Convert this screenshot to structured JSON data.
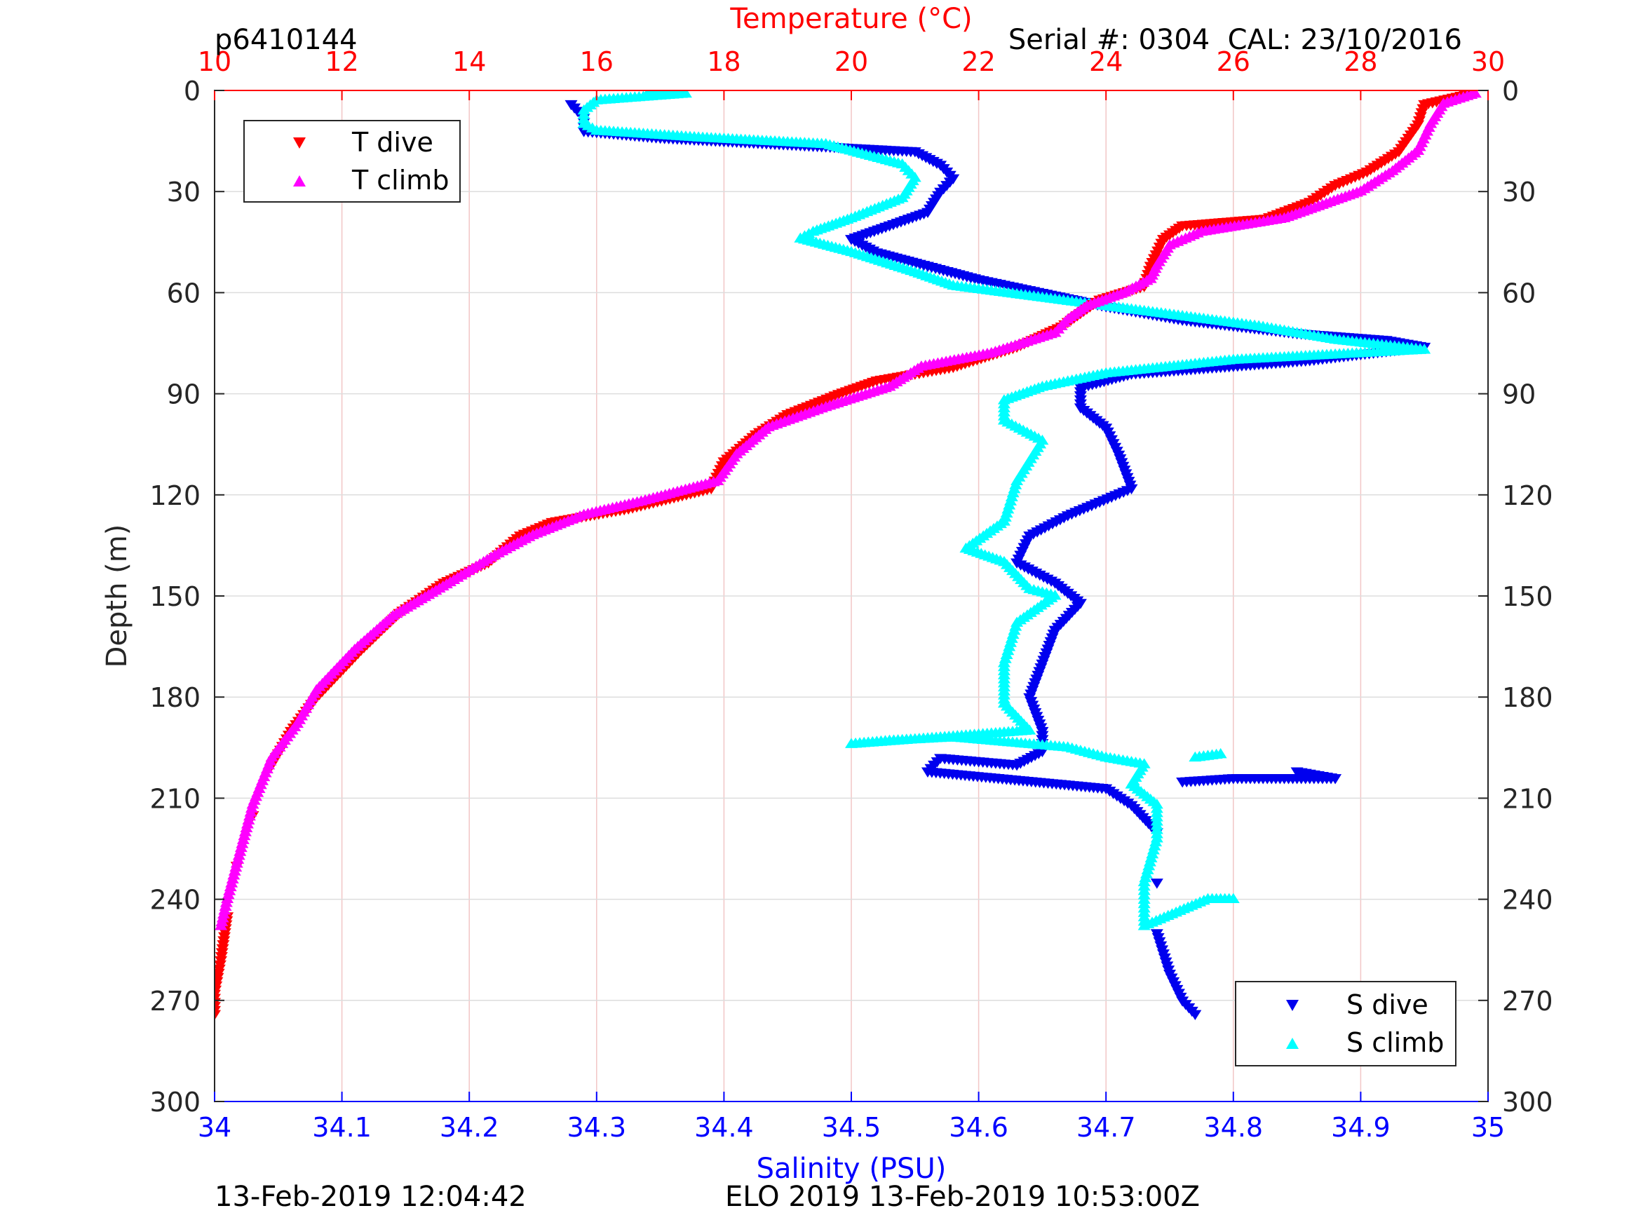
{
  "header": {
    "glider_id": "p6410144",
    "serial_cal": "Serial #: 0304  CAL: 23/10/2016"
  },
  "footer": {
    "plot_time": "13-Feb-2019 12:04:42",
    "mission": "ELO 2019 13-Feb-2019 10:53:00Z"
  },
  "colors": {
    "t_dive": "#ff0000",
    "t_climb": "#ff00ff",
    "s_dive": "#0000ee",
    "s_climb": "#00ffff",
    "temp_axis": "#ff0000",
    "sal_axis": "#0000ff",
    "grid_temp": "#f2c6c6",
    "grid_depth": "#dddddd"
  },
  "chart_data": {
    "type": "scatter",
    "axes": {
      "depth": {
        "label": "Depth (m)",
        "range": [
          0,
          300
        ],
        "inverted": true,
        "ticks": [
          0,
          30,
          60,
          90,
          120,
          150,
          180,
          210,
          240,
          270,
          300
        ],
        "tick_labels": [
          "0",
          "30",
          "60",
          "90",
          "120",
          "150",
          "180",
          "210",
          "240",
          "270",
          "300"
        ]
      },
      "temperature": {
        "label": "Temperature (°C)",
        "position": "top",
        "range": [
          10,
          30
        ],
        "ticks": [
          10,
          12,
          14,
          16,
          18,
          20,
          22,
          24,
          26,
          28,
          30
        ],
        "tick_labels": [
          "10",
          "12",
          "14",
          "16",
          "18",
          "20",
          "22",
          "24",
          "26",
          "28",
          "30"
        ]
      },
      "salinity": {
        "label": "Salinity (PSU)",
        "position": "bottom",
        "range": [
          34,
          35
        ],
        "ticks": [
          34,
          34.1,
          34.2,
          34.3,
          34.4,
          34.5,
          34.6,
          34.7,
          34.8,
          34.9,
          35
        ],
        "tick_labels": [
          "34",
          "34.1",
          "34.2",
          "34.3",
          "34.4",
          "34.5",
          "34.6",
          "34.7",
          "34.8",
          "34.9",
          "35"
        ]
      }
    },
    "grid": true,
    "legends": [
      {
        "placement": "top-left",
        "entries": [
          "T dive",
          "T climb"
        ]
      },
      {
        "placement": "bottom-right",
        "entries": [
          "S dive",
          "S climb"
        ]
      }
    ],
    "series": [
      {
        "name": "T dive",
        "axis": "temperature",
        "marker": "triangle-down",
        "points": [
          [
            29.7,
            1
          ],
          [
            29.0,
            4
          ],
          [
            28.9,
            10
          ],
          [
            28.6,
            18
          ],
          [
            28.1,
            24
          ],
          [
            27.6,
            28
          ],
          [
            27.2,
            33
          ],
          [
            26.5,
            38
          ],
          [
            25.2,
            40
          ],
          [
            24.9,
            44
          ],
          [
            24.7,
            52
          ],
          [
            24.6,
            58
          ],
          [
            23.9,
            62
          ],
          [
            23.6,
            66
          ],
          [
            23.3,
            70
          ],
          [
            22.6,
            76
          ],
          [
            21.6,
            82
          ],
          [
            20.4,
            86
          ],
          [
            19.8,
            90
          ],
          [
            19.0,
            96
          ],
          [
            18.5,
            102
          ],
          [
            18.0,
            110
          ],
          [
            17.8,
            118
          ],
          [
            16.5,
            124
          ],
          [
            15.3,
            128
          ],
          [
            14.8,
            132
          ],
          [
            14.3,
            140
          ],
          [
            13.6,
            146
          ],
          [
            12.9,
            155
          ],
          [
            12.3,
            166
          ],
          [
            11.6,
            180
          ],
          [
            11.2,
            190
          ],
          [
            10.9,
            200
          ],
          [
            10.6,
            215
          ],
          [
            10.35,
            230
          ],
          [
            10.2,
            245
          ],
          [
            10.1,
            258
          ],
          [
            10.0,
            268
          ],
          [
            10.0,
            274
          ]
        ]
      },
      {
        "name": "T climb",
        "axis": "temperature",
        "marker": "triangle-up",
        "points": [
          [
            29.8,
            1
          ],
          [
            29.3,
            4
          ],
          [
            29.1,
            10
          ],
          [
            28.9,
            18
          ],
          [
            28.5,
            24
          ],
          [
            28.0,
            30
          ],
          [
            27.4,
            34
          ],
          [
            26.8,
            38
          ],
          [
            25.5,
            42
          ],
          [
            25.0,
            46
          ],
          [
            24.8,
            52
          ],
          [
            24.7,
            56
          ],
          [
            24.3,
            60
          ],
          [
            23.7,
            64
          ],
          [
            23.4,
            68
          ],
          [
            23.2,
            72
          ],
          [
            22.2,
            78
          ],
          [
            21.1,
            82
          ],
          [
            20.6,
            88
          ],
          [
            19.6,
            94
          ],
          [
            18.7,
            100
          ],
          [
            18.2,
            108
          ],
          [
            17.9,
            116
          ],
          [
            16.7,
            122
          ],
          [
            15.8,
            126
          ],
          [
            15.0,
            132
          ],
          [
            14.4,
            138
          ],
          [
            13.7,
            146
          ],
          [
            12.8,
            156
          ],
          [
            12.2,
            166
          ],
          [
            11.6,
            178
          ],
          [
            11.3,
            188
          ],
          [
            10.9,
            198
          ],
          [
            10.6,
            212
          ],
          [
            10.4,
            226
          ],
          [
            10.2,
            240
          ],
          [
            10.1,
            248
          ]
        ]
      },
      {
        "name": "S dive",
        "axis": "salinity",
        "marker": "triangle-down",
        "points": [
          [
            34.28,
            4
          ],
          [
            34.29,
            8
          ],
          [
            34.29,
            12
          ],
          [
            34.35,
            14
          ],
          [
            34.45,
            16
          ],
          [
            34.55,
            18
          ],
          [
            34.57,
            22
          ],
          [
            34.58,
            26
          ],
          [
            34.57,
            30
          ],
          [
            34.56,
            36
          ],
          [
            34.53,
            40
          ],
          [
            34.5,
            44
          ],
          [
            34.52,
            48
          ],
          [
            34.56,
            52
          ],
          [
            34.6,
            56
          ],
          [
            34.65,
            60
          ],
          [
            34.7,
            64
          ],
          [
            34.76,
            68
          ],
          [
            34.85,
            72
          ],
          [
            34.92,
            74
          ],
          [
            34.95,
            76
          ],
          [
            34.86,
            80
          ],
          [
            34.72,
            84
          ],
          [
            34.68,
            88
          ],
          [
            34.68,
            94
          ],
          [
            34.7,
            100
          ],
          [
            34.71,
            108
          ],
          [
            34.72,
            118
          ],
          [
            34.67,
            126
          ],
          [
            34.64,
            132
          ],
          [
            34.63,
            140
          ],
          [
            34.66,
            146
          ],
          [
            34.68,
            152
          ],
          [
            34.66,
            160
          ],
          [
            34.65,
            170
          ],
          [
            34.64,
            180
          ],
          [
            34.65,
            190
          ],
          [
            34.65,
            196
          ],
          [
            34.63,
            200
          ],
          [
            34.57,
            198
          ],
          [
            34.56,
            202
          ],
          [
            34.7,
            207
          ],
          [
            34.72,
            212
          ],
          [
            34.74,
            220
          ],
          [
            34.74,
            235
          ],
          [
            34.74,
            250
          ],
          [
            34.75,
            262
          ],
          [
            34.76,
            270
          ],
          [
            34.77,
            274
          ],
          [
            34.85,
            202
          ],
          [
            34.88,
            204
          ],
          [
            34.8,
            204
          ],
          [
            34.76,
            205
          ]
        ]
      },
      {
        "name": "S climb",
        "axis": "salinity",
        "marker": "triangle-up",
        "points": [
          [
            34.34,
            1
          ],
          [
            34.37,
            1
          ],
          [
            34.3,
            3
          ],
          [
            34.29,
            6
          ],
          [
            34.29,
            10
          ],
          [
            34.3,
            12
          ],
          [
            34.38,
            14
          ],
          [
            34.48,
            16
          ],
          [
            34.54,
            22
          ],
          [
            34.55,
            26
          ],
          [
            34.54,
            32
          ],
          [
            34.5,
            38
          ],
          [
            34.47,
            42
          ],
          [
            34.46,
            44
          ],
          [
            34.5,
            48
          ],
          [
            34.55,
            54
          ],
          [
            34.58,
            58
          ],
          [
            34.66,
            62
          ],
          [
            34.74,
            66
          ],
          [
            34.82,
            70
          ],
          [
            34.88,
            74
          ],
          [
            34.95,
            77
          ],
          [
            34.8,
            80
          ],
          [
            34.7,
            84
          ],
          [
            34.65,
            88
          ],
          [
            34.62,
            92
          ],
          [
            34.62,
            98
          ],
          [
            34.65,
            104
          ],
          [
            34.63,
            116
          ],
          [
            34.62,
            128
          ],
          [
            34.59,
            136
          ],
          [
            34.62,
            140
          ],
          [
            34.64,
            148
          ],
          [
            34.66,
            150
          ],
          [
            34.63,
            158
          ],
          [
            34.62,
            170
          ],
          [
            34.62,
            182
          ],
          [
            34.64,
            190
          ],
          [
            34.5,
            194
          ],
          [
            34.53,
            193
          ],
          [
            34.58,
            192
          ],
          [
            34.67,
            195
          ],
          [
            34.7,
            198
          ],
          [
            34.73,
            200
          ],
          [
            34.72,
            206
          ],
          [
            34.74,
            212
          ],
          [
            34.74,
            222
          ],
          [
            34.73,
            235
          ],
          [
            34.73,
            248
          ],
          [
            34.78,
            240
          ],
          [
            34.8,
            240
          ],
          [
            34.77,
            198
          ],
          [
            34.79,
            197
          ]
        ]
      }
    ]
  }
}
